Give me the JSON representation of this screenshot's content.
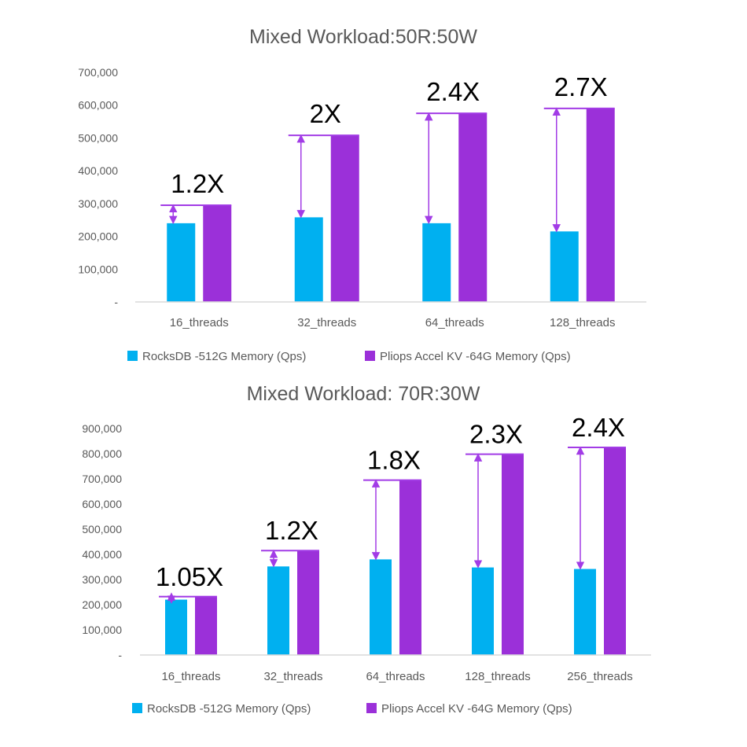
{
  "colors": {
    "rocksdb": "#00b0f0",
    "pliops": "#9b30d9",
    "arrow": "#a23ce6",
    "axis": "#d9d9d9",
    "text": "#595959"
  },
  "chart_data": [
    {
      "type": "bar",
      "title": "Mixed Workload:50R:50W",
      "categories": [
        "16_threads",
        "32_threads",
        "64_threads",
        "128_threads"
      ],
      "series": [
        {
          "name": "RocksDB -512G Memory (Qps)",
          "values": [
            240000,
            258000,
            240000,
            215000
          ]
        },
        {
          "name": "Pliops Accel KV -64G Memory (Qps)",
          "values": [
            295000,
            508000,
            575000,
            590000
          ]
        }
      ],
      "annotations": [
        "1.2X",
        "2X",
        "2.4X",
        "2.7X"
      ],
      "ylim": [
        0,
        700000
      ],
      "yticks": [
        "-",
        "100,000",
        "200,000",
        "300,000",
        "400,000",
        "500,000",
        "600,000",
        "700,000"
      ],
      "legend_position": "bottom",
      "grid": false
    },
    {
      "type": "bar",
      "title": "Mixed Workload: 70R:30W",
      "categories": [
        "16_threads",
        "32_threads",
        "64_threads",
        "128_threads",
        "256_threads"
      ],
      "series": [
        {
          "name": "RocksDB -512G Memory (Qps)",
          "values": [
            220000,
            352000,
            380000,
            348000,
            342000
          ]
        },
        {
          "name": "Pliops Accel KV -64G Memory (Qps)",
          "values": [
            232000,
            415000,
            695000,
            798000,
            825000
          ]
        }
      ],
      "annotations": [
        "1.05X",
        "1.2X",
        "1.8X",
        "2.3X",
        "2.4X"
      ],
      "ylim": [
        0,
        900000
      ],
      "yticks": [
        "-",
        "100,000",
        "200,000",
        "300,000",
        "400,000",
        "500,000",
        "600,000",
        "700,000",
        "800,000",
        "900,000"
      ],
      "legend_position": "bottom",
      "grid": false
    }
  ]
}
